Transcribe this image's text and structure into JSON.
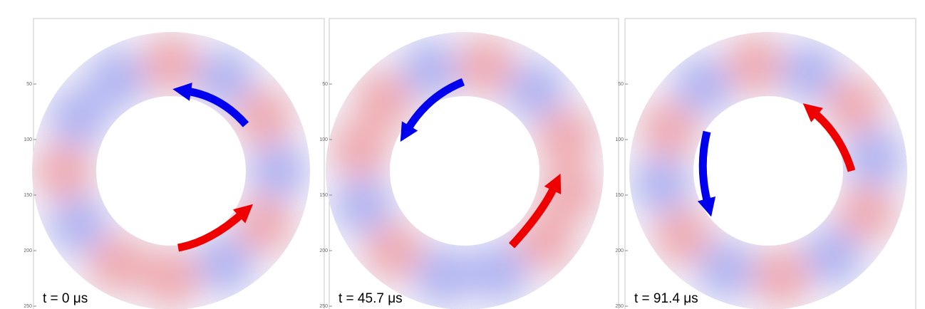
{
  "panels": [
    {
      "time_label": "t = 0 μs",
      "y_ticks": [
        "50",
        "100",
        "150",
        "200",
        "250"
      ]
    },
    {
      "time_label": "t = 45.7 μs",
      "y_ticks": [
        "50",
        "100",
        "150",
        "200",
        "250"
      ]
    },
    {
      "time_label": "t = 91.4 μs",
      "y_ticks": [
        "50",
        "100",
        "150",
        "200",
        "250"
      ]
    }
  ]
}
